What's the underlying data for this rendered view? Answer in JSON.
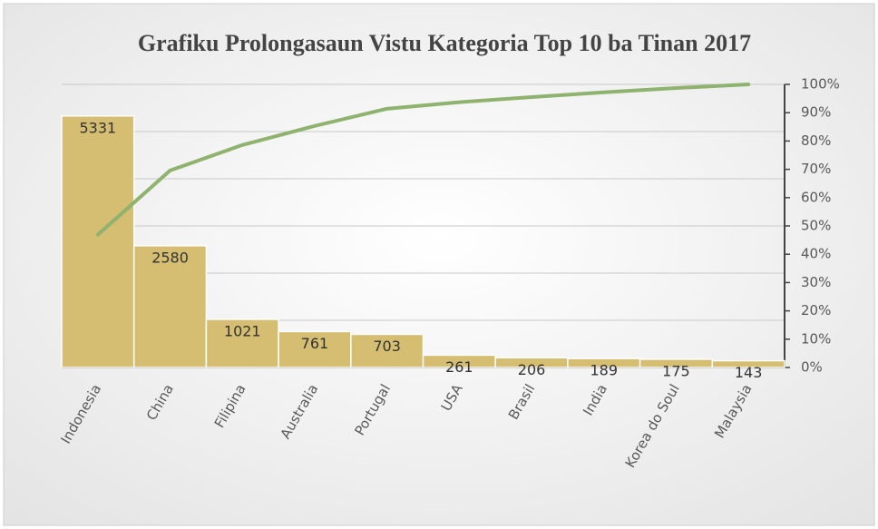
{
  "chart_data": {
    "type": "pareto",
    "title": "Grafiku Prolongasaun Vistu Kategoria Top 10 ba Tinan 2017",
    "categories": [
      "Indonesia",
      "China",
      "Filipina",
      "Australia",
      "Portugal",
      "USA",
      "Brasil",
      "India",
      "Korea do Soul",
      "Malaysia"
    ],
    "series": [
      {
        "type": "bar",
        "color": "#d5bd72",
        "values": [
          5331,
          2580,
          1021,
          761,
          703,
          261,
          206,
          189,
          175,
          143
        ]
      },
      {
        "type": "line",
        "color": "#8fb36f",
        "axis": "y2",
        "values": [
          46.9,
          69.6,
          78.6,
          85.3,
          91.4,
          93.7,
          95.5,
          97.2,
          98.7,
          100
        ]
      }
    ],
    "ylim": [
      0,
      6000
    ],
    "yticks": [
      0,
      1000,
      2000,
      3000,
      4000,
      5000,
      6000
    ],
    "y2lim": [
      0,
      100
    ],
    "y2ticks": [
      {
        "value": 0,
        "label": "0%"
      },
      {
        "value": 10,
        "label": "10%"
      },
      {
        "value": 20,
        "label": "20%"
      },
      {
        "value": 30,
        "label": "30%"
      },
      {
        "value": 40,
        "label": "40%"
      },
      {
        "value": 50,
        "label": "50%"
      },
      {
        "value": 60,
        "label": "60%"
      },
      {
        "value": 70,
        "label": "70%"
      },
      {
        "value": 80,
        "label": "80%"
      },
      {
        "value": 90,
        "label": "90%"
      },
      {
        "value": 100,
        "label": "100%"
      }
    ],
    "grid": true
  }
}
